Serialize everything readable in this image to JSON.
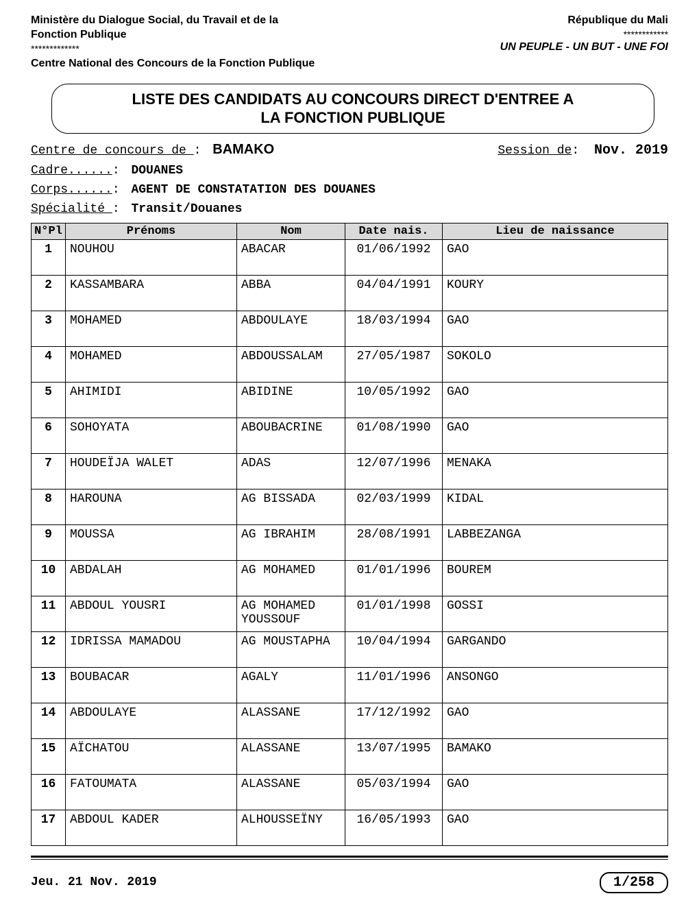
{
  "header": {
    "ministry_line1": "Ministère du Dialogue Social, du Travail et de la",
    "ministry_line2": "Fonction Publique",
    "stars_left": "*************",
    "centre": "Centre National des Concours de la Fonction Publique",
    "republic": "République du Mali",
    "stars_right": "************",
    "motto": "UN PEUPLE - UN BUT - UNE FOI"
  },
  "title": {
    "line1": "LISTE DES CANDIDATS AU CONCOURS DIRECT D'ENTREE A",
    "line2": "LA FONCTION PUBLIQUE"
  },
  "meta": {
    "centre_label": "Centre de concours de ",
    "centre_value": "BAMAKO",
    "session_label": "Session de",
    "session_value": "Nov.  2019",
    "cadre_label": "Cadre......",
    "cadre_value": "DOUANES",
    "corps_label": "Corps......",
    "corps_value": "AGENT DE CONSTATATION DES DOUANES",
    "specialite_label": "Spécialité ",
    "specialite_value": "Transit/Douanes"
  },
  "table": {
    "columns": [
      "N°Pl",
      "Prénoms",
      "Nom",
      "Date nais.",
      "Lieu de naissance"
    ],
    "rows": [
      {
        "n": "1",
        "prenom": "NOUHOU",
        "nom": "ABACAR",
        "date": "01/06/1992",
        "lieu": "GAO"
      },
      {
        "n": "2",
        "prenom": "KASSAMBARA",
        "nom": "ABBA",
        "date": "04/04/1991",
        "lieu": "KOURY"
      },
      {
        "n": "3",
        "prenom": "MOHAMED",
        "nom": "ABDOULAYE",
        "date": "18/03/1994",
        "lieu": "GAO"
      },
      {
        "n": "4",
        "prenom": "MOHAMED",
        "nom": "ABDOUSSALAM",
        "date": "27/05/1987",
        "lieu": "SOKOLO"
      },
      {
        "n": "5",
        "prenom": "AHIMIDI",
        "nom": "ABIDINE",
        "date": "10/05/1992",
        "lieu": "GAO"
      },
      {
        "n": "6",
        "prenom": "SOHOYATA",
        "nom": "ABOUBACRINE",
        "date": "01/08/1990",
        "lieu": "GAO"
      },
      {
        "n": "7",
        "prenom": "HOUDEÏJA WALET",
        "nom": "ADAS",
        "date": "12/07/1996",
        "lieu": "MENAKA"
      },
      {
        "n": "8",
        "prenom": "HAROUNA",
        "nom": "AG BISSADA",
        "date": "02/03/1999",
        "lieu": "KIDAL"
      },
      {
        "n": "9",
        "prenom": "MOUSSA",
        "nom": "AG IBRAHIM",
        "date": "28/08/1991",
        "lieu": "LABBEZANGA"
      },
      {
        "n": "10",
        "prenom": "ABDALAH",
        "nom": "AG MOHAMED",
        "date": "01/01/1996",
        "lieu": "BOUREM"
      },
      {
        "n": "11",
        "prenom": "ABDOUL YOUSRI",
        "nom": "AG MOHAMED YOUSSOUF",
        "date": "01/01/1998",
        "lieu": "GOSSI"
      },
      {
        "n": "12",
        "prenom": "IDRISSA MAMADOU",
        "nom": "AG MOUSTAPHA",
        "date": "10/04/1994",
        "lieu": "GARGANDO"
      },
      {
        "n": "13",
        "prenom": "BOUBACAR",
        "nom": "AGALY",
        "date": "11/01/1996",
        "lieu": "ANSONGO"
      },
      {
        "n": "14",
        "prenom": "ABDOULAYE",
        "nom": "ALASSANE",
        "date": "17/12/1992",
        "lieu": "GAO"
      },
      {
        "n": "15",
        "prenom": "AÏCHATOU",
        "nom": "ALASSANE",
        "date": "13/07/1995",
        "lieu": "BAMAKO"
      },
      {
        "n": "16",
        "prenom": "FATOUMATA",
        "nom": "ALASSANE",
        "date": "05/03/1994",
        "lieu": "GAO"
      },
      {
        "n": "17",
        "prenom": "ABDOUL KADER",
        "nom": "ALHOUSSEÏNY",
        "date": "16/05/1993",
        "lieu": "GAO"
      }
    ]
  },
  "footer": {
    "date": "Jeu. 21 Nov.  2019",
    "page": "1/258"
  },
  "colors": {
    "text": "#000000",
    "background": "#ffffff",
    "header_bg": "#d9d9d9",
    "border": "#000000"
  }
}
